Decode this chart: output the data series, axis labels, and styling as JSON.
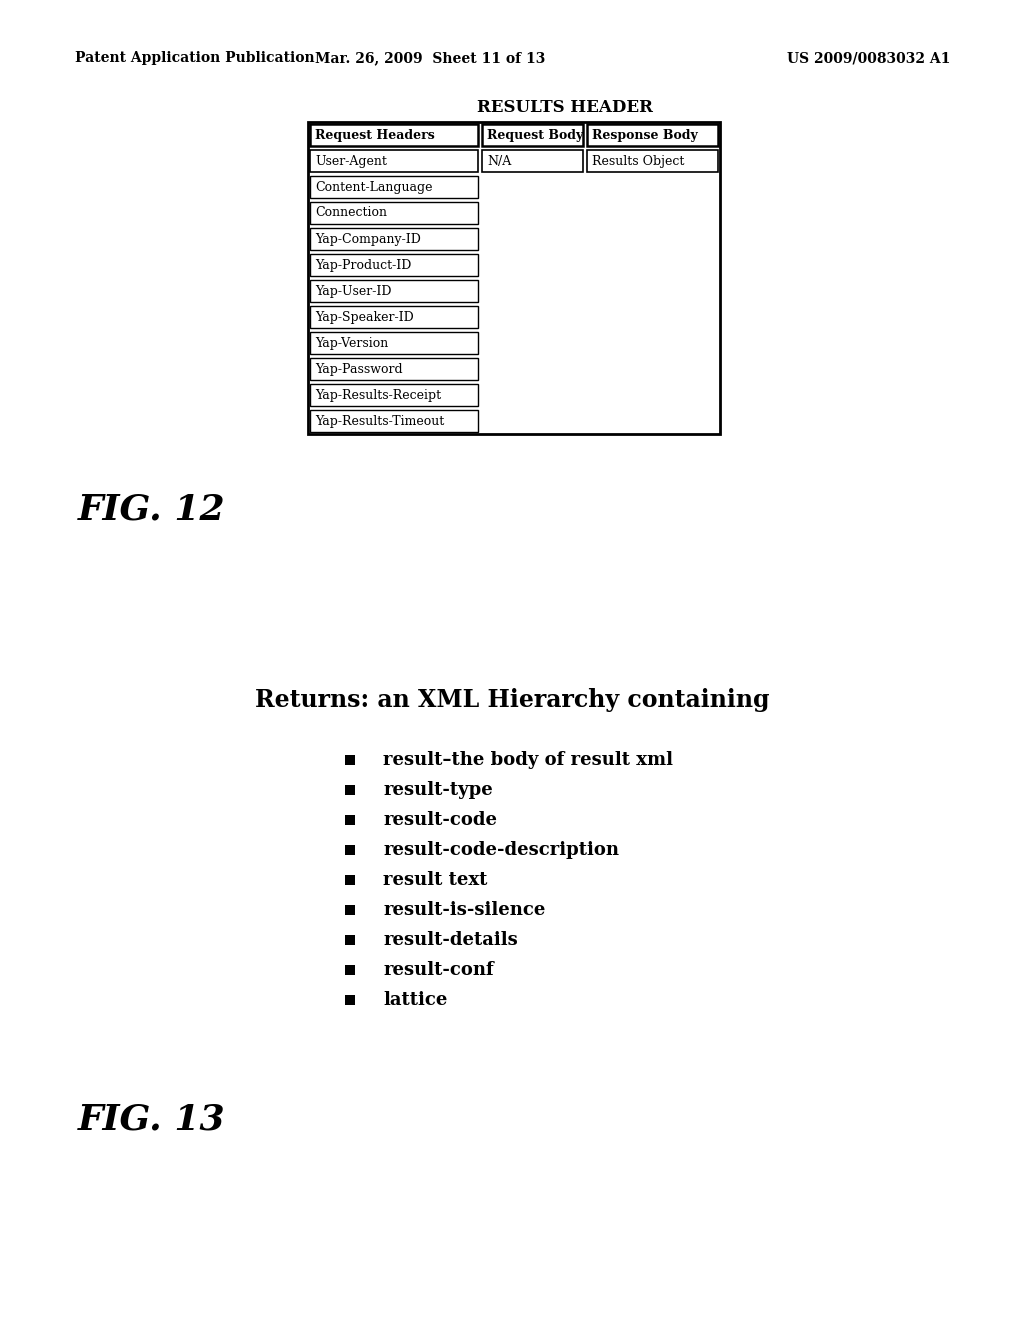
{
  "header_text_left": "Patent Application Publication",
  "header_text_mid": "Mar. 26, 2009  Sheet 11 of 13",
  "header_text_right": "US 2009/0083032 A1",
  "fig12_label": "FIG. 12",
  "fig13_label": "FIG. 13",
  "table_title": "RESULTS HEADER",
  "col_headers": [
    "Request Headers",
    "Request Body",
    "Response Body"
  ],
  "row1_data": [
    "User-Agent",
    "N/A",
    "Results Object"
  ],
  "request_headers_only": [
    "Content-Language",
    "Connection",
    "Yap-Company-ID",
    "Yap-Product-ID",
    "Yap-User-ID",
    "Yap-Speaker-ID",
    "Yap-Version",
    "Yap-Password",
    "Yap-Results-Receipt",
    "Yap-Results-Timeout"
  ],
  "returns_title": "Returns: an XML Hierarchy containing",
  "bullet_items": [
    "result–the body of result xml",
    "result-type",
    "result-code",
    "result-code-description",
    "result text",
    "result-is-silence",
    "result-details",
    "result-conf",
    "lattice"
  ],
  "bg_color": "#ffffff",
  "text_color": "#000000"
}
